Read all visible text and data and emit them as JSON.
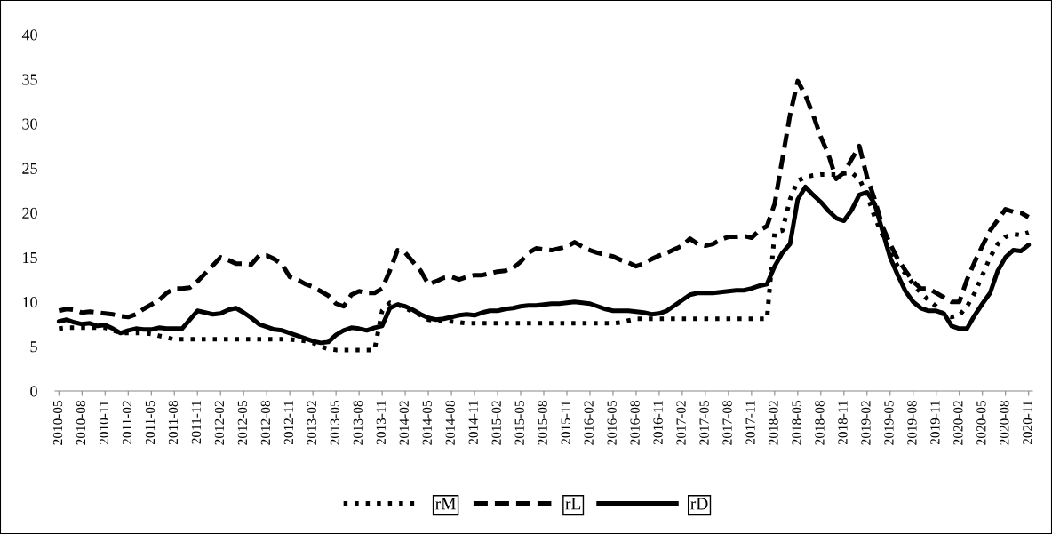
{
  "chart_data": {
    "type": "line",
    "categories": [
      "2010-05",
      null,
      null,
      "2010-08",
      null,
      null,
      "2010-11",
      null,
      null,
      "2011-02",
      null,
      null,
      "2011-05",
      null,
      null,
      "2011-08",
      null,
      null,
      "2011-11",
      null,
      null,
      "2012-02",
      null,
      null,
      "2012-05",
      null,
      null,
      "2012-08",
      null,
      null,
      "2012-11",
      null,
      null,
      "2013-02",
      null,
      null,
      "2013-05",
      null,
      null,
      "2013-08",
      null,
      null,
      "2013-11",
      null,
      null,
      "2014-02",
      null,
      null,
      "2014-05",
      null,
      null,
      "2014-08",
      null,
      null,
      "2014-11",
      null,
      null,
      "2015-02",
      null,
      null,
      "2015-05",
      null,
      null,
      "2015-08",
      null,
      null,
      "2015-11",
      null,
      null,
      "2016-02",
      null,
      null,
      "2016-05",
      null,
      null,
      "2016-08",
      null,
      null,
      "2016-11",
      null,
      null,
      "2017-02",
      null,
      null,
      "2017-05",
      null,
      null,
      "2017-08",
      null,
      null,
      "2017-11",
      null,
      null,
      "2018-02",
      null,
      null,
      "2018-05",
      null,
      null,
      "2018-08",
      null,
      null,
      "2018-11",
      null,
      null,
      "2019-02",
      null,
      null,
      "2019-05",
      null,
      null,
      "2019-08",
      null,
      null,
      "2019-11",
      null,
      null,
      "2020-02",
      null,
      null,
      "2020-05",
      null,
      null,
      "2020-08",
      null,
      null,
      "2020-11"
    ],
    "series": [
      {
        "name": "rM",
        "color": "#000000",
        "line_style": "dotted",
        "values": [
          7.0,
          7.1,
          7.1,
          7.1,
          7.1,
          7.1,
          7.1,
          6.8,
          6.5,
          6.5,
          6.5,
          6.5,
          6.4,
          6.2,
          6.0,
          5.8,
          5.8,
          5.8,
          5.8,
          5.8,
          5.8,
          5.8,
          5.8,
          5.8,
          5.8,
          5.8,
          5.8,
          5.8,
          5.8,
          5.8,
          5.8,
          5.7,
          5.6,
          5.4,
          5.0,
          4.7,
          4.6,
          4.6,
          4.6,
          4.6,
          4.6,
          4.6,
          9.0,
          9.9,
          9.7,
          9.3,
          8.9,
          8.5,
          8.0,
          7.9,
          7.9,
          7.8,
          7.7,
          7.6,
          7.6,
          7.6,
          7.6,
          7.6,
          7.6,
          7.6,
          7.6,
          7.6,
          7.6,
          7.6,
          7.6,
          7.6,
          7.6,
          7.6,
          7.6,
          7.6,
          7.6,
          7.6,
          7.6,
          7.7,
          7.9,
          8.1,
          8.1,
          8.1,
          8.1,
          8.1,
          8.1,
          8.1,
          8.1,
          8.1,
          8.1,
          8.1,
          8.1,
          8.1,
          8.1,
          8.1,
          8.1,
          8.1,
          8.1,
          17.8,
          18.0,
          21.5,
          23.6,
          24.0,
          24.2,
          24.3,
          24.3,
          24.3,
          24.4,
          24.5,
          23.8,
          22.0,
          19.5,
          17.5,
          15.5,
          14.0,
          13.2,
          12.0,
          11.0,
          10.2,
          9.5,
          8.5,
          8.3,
          8.5,
          9.5,
          11.0,
          13.0,
          15.0,
          16.5,
          17.3,
          17.6,
          17.5,
          17.8
        ]
      },
      {
        "name": "rL",
        "color": "#000000",
        "line_style": "dashed",
        "values": [
          9.0,
          9.2,
          9.1,
          8.8,
          8.9,
          8.8,
          8.7,
          8.6,
          8.4,
          8.3,
          8.6,
          9.2,
          9.7,
          10.2,
          11.0,
          11.5,
          11.5,
          11.6,
          12.3,
          13.2,
          14.1,
          15.0,
          14.7,
          14.3,
          14.3,
          14.2,
          15.2,
          15.2,
          14.8,
          14.2,
          12.8,
          12.5,
          12.0,
          11.7,
          11.2,
          10.7,
          9.8,
          9.5,
          10.8,
          11.2,
          11.0,
          11.0,
          11.5,
          13.5,
          15.8,
          15.5,
          14.5,
          13.5,
          12.0,
          12.3,
          12.7,
          12.8,
          12.5,
          12.8,
          13.0,
          13.0,
          13.2,
          13.4,
          13.5,
          13.8,
          14.5,
          15.5,
          16.0,
          15.9,
          15.8,
          16.0,
          16.2,
          16.7,
          16.2,
          15.8,
          15.5,
          15.3,
          15.1,
          14.7,
          14.4,
          14.0,
          14.3,
          14.8,
          15.2,
          15.5,
          15.9,
          16.3,
          17.1,
          16.5,
          16.3,
          16.5,
          17.0,
          17.3,
          17.3,
          17.4,
          17.2,
          18.0,
          18.5,
          21.0,
          26.0,
          31.0,
          34.8,
          33.2,
          31.0,
          28.5,
          26.5,
          23.8,
          24.5,
          26.0,
          27.5,
          24.0,
          21.5,
          18.5,
          16.5,
          14.8,
          13.5,
          12.3,
          11.5,
          11.5,
          11.0,
          10.5,
          10.0,
          10.0,
          12.5,
          14.5,
          16.3,
          18.0,
          19.2,
          20.4,
          20.1,
          20.0,
          19.5
        ]
      },
      {
        "name": "rD",
        "color": "#000000",
        "line_style": "solid",
        "values": [
          7.8,
          8.0,
          7.7,
          7.5,
          7.6,
          7.3,
          7.4,
          7.0,
          6.5,
          6.8,
          7.0,
          6.9,
          6.9,
          7.1,
          7.0,
          7.0,
          7.0,
          8.0,
          9.0,
          8.8,
          8.6,
          8.7,
          9.1,
          9.3,
          8.8,
          8.2,
          7.5,
          7.2,
          6.9,
          6.8,
          6.5,
          6.2,
          5.9,
          5.6,
          5.4,
          5.5,
          6.3,
          6.8,
          7.1,
          7.0,
          6.8,
          7.1,
          7.3,
          9.3,
          9.7,
          9.5,
          9.1,
          8.6,
          8.2,
          8.0,
          8.1,
          8.3,
          8.5,
          8.6,
          8.5,
          8.8,
          9.0,
          9.0,
          9.2,
          9.3,
          9.5,
          9.6,
          9.6,
          9.7,
          9.8,
          9.8,
          9.9,
          10.0,
          9.9,
          9.8,
          9.5,
          9.2,
          9.0,
          9.0,
          9.0,
          8.9,
          8.8,
          8.6,
          8.7,
          9.0,
          9.6,
          10.2,
          10.8,
          11.0,
          11.0,
          11.0,
          11.1,
          11.2,
          11.3,
          11.3,
          11.5,
          11.8,
          12.0,
          14.0,
          15.5,
          16.5,
          21.5,
          22.9,
          22.0,
          21.2,
          20.2,
          19.4,
          19.1,
          20.3,
          22.0,
          22.3,
          21.0,
          18.0,
          15.0,
          13.0,
          11.2,
          10.0,
          9.3,
          9.0,
          9.0,
          8.7,
          7.3,
          7.0,
          7.0,
          8.5,
          9.8,
          11.0,
          13.5,
          15.0,
          15.8,
          15.7,
          16.4
        ]
      }
    ],
    "ylim": [
      0,
      40
    ],
    "yticks": [
      0,
      5,
      10,
      15,
      20,
      25,
      30,
      35,
      40
    ],
    "grid": false,
    "legend": "bottom"
  }
}
